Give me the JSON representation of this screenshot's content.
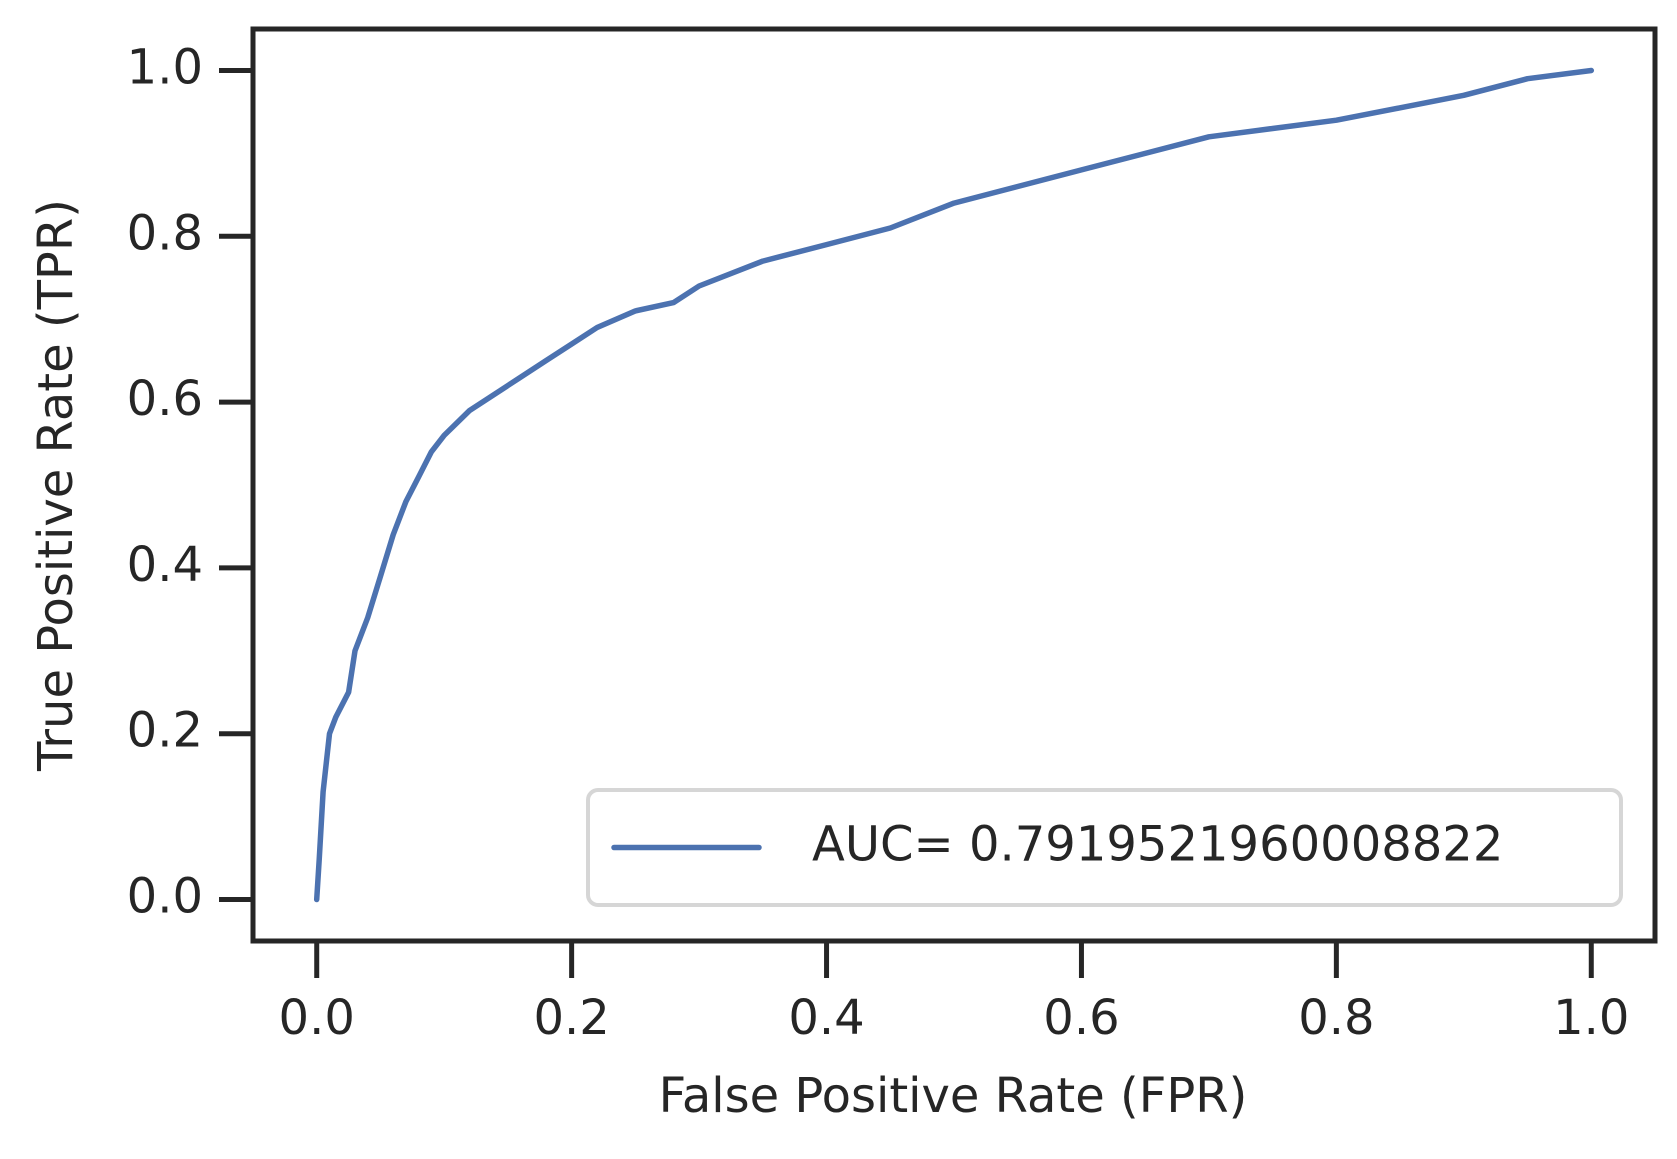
{
  "chart_data": {
    "type": "line",
    "xlabel": "False Positive Rate (FPR)",
    "ylabel": "True Positive Rate (TPR)",
    "x": [
      0,
      0.002,
      0.005,
      0.01,
      0.015,
      0.025,
      0.03,
      0.04,
      0.05,
      0.06,
      0.07,
      0.08,
      0.09,
      0.1,
      0.12,
      0.15,
      0.18,
      0.2,
      0.22,
      0.25,
      0.28,
      0.3,
      0.35,
      0.4,
      0.45,
      0.5,
      0.55,
      0.6,
      0.65,
      0.7,
      0.75,
      0.8,
      0.85,
      0.9,
      0.95,
      1.0
    ],
    "series": [
      {
        "name": "AUC= 0.7919521960008822",
        "color": "#4c72b0",
        "values": [
          0,
          0.05,
          0.13,
          0.2,
          0.22,
          0.25,
          0.3,
          0.34,
          0.39,
          0.44,
          0.48,
          0.51,
          0.54,
          0.56,
          0.59,
          0.62,
          0.65,
          0.67,
          0.69,
          0.71,
          0.72,
          0.74,
          0.77,
          0.79,
          0.81,
          0.84,
          0.86,
          0.88,
          0.9,
          0.92,
          0.93,
          0.94,
          0.955,
          0.97,
          0.99,
          1.0
        ]
      }
    ],
    "xlim": [
      -0.05,
      1.05
    ],
    "ylim": [
      -0.05,
      1.05
    ],
    "xticks": [
      {
        "value": 0,
        "label": "0.0"
      },
      0.2,
      0.4,
      0.6,
      0.8,
      {
        "value": 1,
        "label": "1.0"
      }
    ],
    "yticks": [
      {
        "value": 0,
        "label": "0.0"
      },
      0.2,
      0.4,
      0.6,
      0.8,
      {
        "value": 1,
        "label": "1.0"
      }
    ],
    "legend": "lower right",
    "grid": false
  }
}
